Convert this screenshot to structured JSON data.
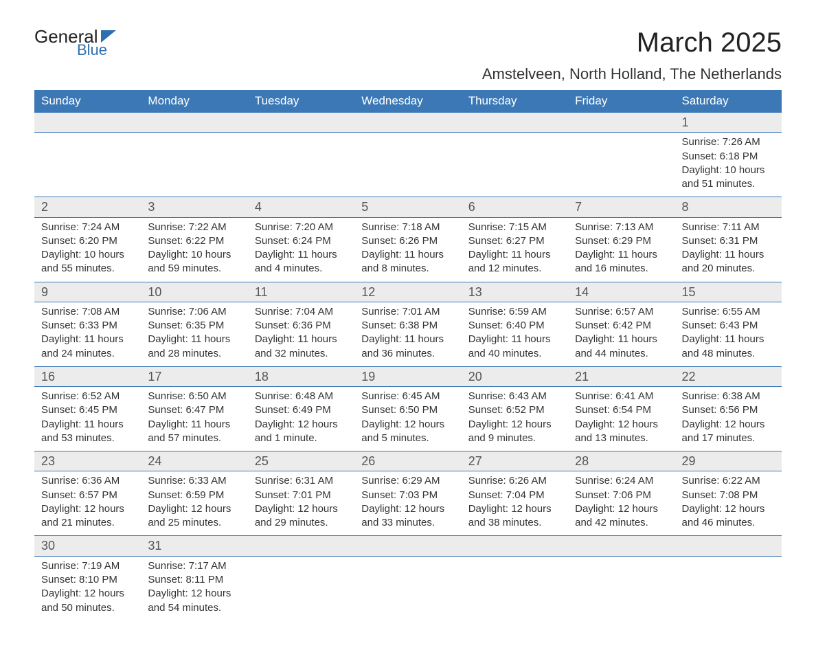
{
  "brand": {
    "name_top": "General",
    "name_bottom": "Blue"
  },
  "title": "March 2025",
  "location": "Amstelveen, North Holland, The Netherlands",
  "colors": {
    "header_bg": "#3b78b5",
    "header_text": "#ffffff",
    "daynum_bg": "#ececec",
    "row_border": "#3b78b5",
    "text": "#333333",
    "brand_accent": "#2f6fb0",
    "page_bg": "#ffffff"
  },
  "typography": {
    "title_fontsize": 40,
    "location_fontsize": 22,
    "dayheader_fontsize": 17,
    "daynum_fontsize": 18,
    "detail_fontsize": 15,
    "font_family": "Arial"
  },
  "day_headers": [
    "Sunday",
    "Monday",
    "Tuesday",
    "Wednesday",
    "Thursday",
    "Friday",
    "Saturday"
  ],
  "weeks": [
    [
      null,
      null,
      null,
      null,
      null,
      null,
      {
        "day": "1",
        "sunrise": "Sunrise: 7:26 AM",
        "sunset": "Sunset: 6:18 PM",
        "daylight1": "Daylight: 10 hours",
        "daylight2": "and 51 minutes."
      }
    ],
    [
      {
        "day": "2",
        "sunrise": "Sunrise: 7:24 AM",
        "sunset": "Sunset: 6:20 PM",
        "daylight1": "Daylight: 10 hours",
        "daylight2": "and 55 minutes."
      },
      {
        "day": "3",
        "sunrise": "Sunrise: 7:22 AM",
        "sunset": "Sunset: 6:22 PM",
        "daylight1": "Daylight: 10 hours",
        "daylight2": "and 59 minutes."
      },
      {
        "day": "4",
        "sunrise": "Sunrise: 7:20 AM",
        "sunset": "Sunset: 6:24 PM",
        "daylight1": "Daylight: 11 hours",
        "daylight2": "and 4 minutes."
      },
      {
        "day": "5",
        "sunrise": "Sunrise: 7:18 AM",
        "sunset": "Sunset: 6:26 PM",
        "daylight1": "Daylight: 11 hours",
        "daylight2": "and 8 minutes."
      },
      {
        "day": "6",
        "sunrise": "Sunrise: 7:15 AM",
        "sunset": "Sunset: 6:27 PM",
        "daylight1": "Daylight: 11 hours",
        "daylight2": "and 12 minutes."
      },
      {
        "day": "7",
        "sunrise": "Sunrise: 7:13 AM",
        "sunset": "Sunset: 6:29 PM",
        "daylight1": "Daylight: 11 hours",
        "daylight2": "and 16 minutes."
      },
      {
        "day": "8",
        "sunrise": "Sunrise: 7:11 AM",
        "sunset": "Sunset: 6:31 PM",
        "daylight1": "Daylight: 11 hours",
        "daylight2": "and 20 minutes."
      }
    ],
    [
      {
        "day": "9",
        "sunrise": "Sunrise: 7:08 AM",
        "sunset": "Sunset: 6:33 PM",
        "daylight1": "Daylight: 11 hours",
        "daylight2": "and 24 minutes."
      },
      {
        "day": "10",
        "sunrise": "Sunrise: 7:06 AM",
        "sunset": "Sunset: 6:35 PM",
        "daylight1": "Daylight: 11 hours",
        "daylight2": "and 28 minutes."
      },
      {
        "day": "11",
        "sunrise": "Sunrise: 7:04 AM",
        "sunset": "Sunset: 6:36 PM",
        "daylight1": "Daylight: 11 hours",
        "daylight2": "and 32 minutes."
      },
      {
        "day": "12",
        "sunrise": "Sunrise: 7:01 AM",
        "sunset": "Sunset: 6:38 PM",
        "daylight1": "Daylight: 11 hours",
        "daylight2": "and 36 minutes."
      },
      {
        "day": "13",
        "sunrise": "Sunrise: 6:59 AM",
        "sunset": "Sunset: 6:40 PM",
        "daylight1": "Daylight: 11 hours",
        "daylight2": "and 40 minutes."
      },
      {
        "day": "14",
        "sunrise": "Sunrise: 6:57 AM",
        "sunset": "Sunset: 6:42 PM",
        "daylight1": "Daylight: 11 hours",
        "daylight2": "and 44 minutes."
      },
      {
        "day": "15",
        "sunrise": "Sunrise: 6:55 AM",
        "sunset": "Sunset: 6:43 PM",
        "daylight1": "Daylight: 11 hours",
        "daylight2": "and 48 minutes."
      }
    ],
    [
      {
        "day": "16",
        "sunrise": "Sunrise: 6:52 AM",
        "sunset": "Sunset: 6:45 PM",
        "daylight1": "Daylight: 11 hours",
        "daylight2": "and 53 minutes."
      },
      {
        "day": "17",
        "sunrise": "Sunrise: 6:50 AM",
        "sunset": "Sunset: 6:47 PM",
        "daylight1": "Daylight: 11 hours",
        "daylight2": "and 57 minutes."
      },
      {
        "day": "18",
        "sunrise": "Sunrise: 6:48 AM",
        "sunset": "Sunset: 6:49 PM",
        "daylight1": "Daylight: 12 hours",
        "daylight2": "and 1 minute."
      },
      {
        "day": "19",
        "sunrise": "Sunrise: 6:45 AM",
        "sunset": "Sunset: 6:50 PM",
        "daylight1": "Daylight: 12 hours",
        "daylight2": "and 5 minutes."
      },
      {
        "day": "20",
        "sunrise": "Sunrise: 6:43 AM",
        "sunset": "Sunset: 6:52 PM",
        "daylight1": "Daylight: 12 hours",
        "daylight2": "and 9 minutes."
      },
      {
        "day": "21",
        "sunrise": "Sunrise: 6:41 AM",
        "sunset": "Sunset: 6:54 PM",
        "daylight1": "Daylight: 12 hours",
        "daylight2": "and 13 minutes."
      },
      {
        "day": "22",
        "sunrise": "Sunrise: 6:38 AM",
        "sunset": "Sunset: 6:56 PM",
        "daylight1": "Daylight: 12 hours",
        "daylight2": "and 17 minutes."
      }
    ],
    [
      {
        "day": "23",
        "sunrise": "Sunrise: 6:36 AM",
        "sunset": "Sunset: 6:57 PM",
        "daylight1": "Daylight: 12 hours",
        "daylight2": "and 21 minutes."
      },
      {
        "day": "24",
        "sunrise": "Sunrise: 6:33 AM",
        "sunset": "Sunset: 6:59 PM",
        "daylight1": "Daylight: 12 hours",
        "daylight2": "and 25 minutes."
      },
      {
        "day": "25",
        "sunrise": "Sunrise: 6:31 AM",
        "sunset": "Sunset: 7:01 PM",
        "daylight1": "Daylight: 12 hours",
        "daylight2": "and 29 minutes."
      },
      {
        "day": "26",
        "sunrise": "Sunrise: 6:29 AM",
        "sunset": "Sunset: 7:03 PM",
        "daylight1": "Daylight: 12 hours",
        "daylight2": "and 33 minutes."
      },
      {
        "day": "27",
        "sunrise": "Sunrise: 6:26 AM",
        "sunset": "Sunset: 7:04 PM",
        "daylight1": "Daylight: 12 hours",
        "daylight2": "and 38 minutes."
      },
      {
        "day": "28",
        "sunrise": "Sunrise: 6:24 AM",
        "sunset": "Sunset: 7:06 PM",
        "daylight1": "Daylight: 12 hours",
        "daylight2": "and 42 minutes."
      },
      {
        "day": "29",
        "sunrise": "Sunrise: 6:22 AM",
        "sunset": "Sunset: 7:08 PM",
        "daylight1": "Daylight: 12 hours",
        "daylight2": "and 46 minutes."
      }
    ],
    [
      {
        "day": "30",
        "sunrise": "Sunrise: 7:19 AM",
        "sunset": "Sunset: 8:10 PM",
        "daylight1": "Daylight: 12 hours",
        "daylight2": "and 50 minutes."
      },
      {
        "day": "31",
        "sunrise": "Sunrise: 7:17 AM",
        "sunset": "Sunset: 8:11 PM",
        "daylight1": "Daylight: 12 hours",
        "daylight2": "and 54 minutes."
      },
      null,
      null,
      null,
      null,
      null
    ]
  ]
}
